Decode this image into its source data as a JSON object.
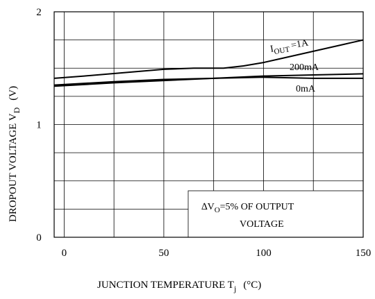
{
  "chart_data": {
    "type": "line",
    "xlabel": "JUNCTION TEMPERATURE T",
    "xlabel_sub": "j",
    "xlabel_unit": "(°C)",
    "ylabel": "DROPOUT VOLTAGE V",
    "ylabel_sub": "D",
    "ylabel_unit": "(V)",
    "xlim": [
      -5,
      150
    ],
    "ylim": [
      0,
      2
    ],
    "x_ticks": [
      0,
      50,
      100,
      150
    ],
    "y_ticks": [
      0,
      1,
      2
    ],
    "x_grid": [
      0,
      25,
      50,
      75,
      100,
      125
    ],
    "y_grid": [
      0.25,
      0.5,
      0.75,
      1.0,
      1.25,
      1.5,
      1.75
    ],
    "grid": true,
    "series": [
      {
        "name": "1A",
        "label_prefix": "I",
        "label_sub": "OUT",
        "label_suffix": "=1A",
        "x": [
          -5,
          10,
          30,
          50,
          65,
          80,
          90,
          100,
          110,
          120,
          130,
          140,
          150
        ],
        "y": [
          1.41,
          1.43,
          1.46,
          1.49,
          1.5,
          1.5,
          1.52,
          1.55,
          1.59,
          1.63,
          1.67,
          1.71,
          1.75
        ]
      },
      {
        "name": "200mA",
        "label": "200mA",
        "x": [
          -5,
          25,
          50,
          75,
          100,
          125,
          150
        ],
        "y": [
          1.35,
          1.38,
          1.4,
          1.41,
          1.43,
          1.44,
          1.45
        ]
      },
      {
        "name": "0mA",
        "label": "0mA",
        "x": [
          -5,
          25,
          50,
          75,
          100,
          125,
          150
        ],
        "y": [
          1.34,
          1.37,
          1.39,
          1.41,
          1.42,
          1.41,
          1.41
        ]
      }
    ],
    "annotation": {
      "prefix": "∆V",
      "sub": "O",
      "line1_rest": "=5% OF OUTPUT",
      "line2": "VOLTAGE"
    }
  }
}
